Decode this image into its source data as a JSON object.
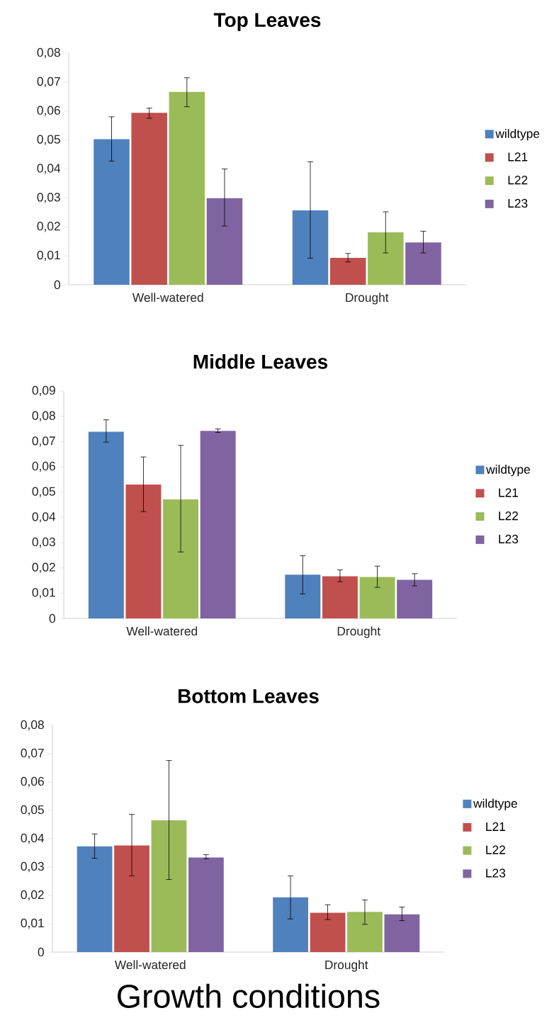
{
  "chart_data": [
    {
      "type": "bar",
      "title": "Top Leaves",
      "categories": [
        "Well-watered",
        "Drought"
      ],
      "legend": "right",
      "ylim": [
        0,
        0.08
      ],
      "yticks": [
        0,
        {
          "value": 0.01,
          "label": "0,01"
        },
        {
          "value": 0.02,
          "label": "0,02"
        },
        {
          "value": 0.03,
          "label": "0,03"
        },
        {
          "value": 0.04,
          "label": "0,04"
        },
        {
          "value": 0.05,
          "label": "0,05"
        },
        {
          "value": 0.06,
          "label": "0,06"
        },
        {
          "value": 0.07,
          "label": "0,07"
        },
        {
          "value": 0.08,
          "label": "0,08"
        }
      ],
      "series": [
        {
          "name": "wildtype",
          "color": "#4f81bd",
          "values": [
            0.0503,
            0.0257
          ],
          "errors": [
            [
              0.0427,
              0.058
            ],
            [
              0.0092,
              0.0425
            ]
          ]
        },
        {
          "name": "L21",
          "color": "#c0504d",
          "values": [
            0.0594,
            0.0093
          ],
          "errors": [
            [
              0.0575,
              0.061
            ],
            [
              0.0079,
              0.0108
            ]
          ]
        },
        {
          "name": "L22",
          "color": "#9bbb59",
          "values": [
            0.0666,
            0.0181
          ],
          "errors": [
            [
              0.0615,
              0.0715
            ],
            [
              0.011,
              0.0252
            ]
          ]
        },
        {
          "name": "L23",
          "color": "#8064a2",
          "values": [
            0.0299,
            0.0146
          ],
          "errors": [
            [
              0.0203,
              0.04
            ],
            [
              0.011,
              0.0185
            ]
          ]
        }
      ]
    },
    {
      "type": "bar",
      "title": "Middle Leaves",
      "categories": [
        "Well-watered",
        "Drought"
      ],
      "legend": "right",
      "ylim": [
        0,
        0.09
      ],
      "yticks": [
        0,
        {
          "value": 0.01,
          "label": "0,01"
        },
        {
          "value": 0.02,
          "label": "0,02"
        },
        {
          "value": 0.03,
          "label": "0,03"
        },
        {
          "value": 0.04,
          "label": "0,04"
        },
        {
          "value": 0.05,
          "label": "0,05"
        },
        {
          "value": 0.06,
          "label": "0,06"
        },
        {
          "value": 0.07,
          "label": "0,07"
        },
        {
          "value": 0.08,
          "label": "0,08"
        },
        {
          "value": 0.09,
          "label": "0,09"
        }
      ],
      "series": [
        {
          "name": "wildtype",
          "color": "#4f81bd",
          "values": [
            0.0739,
            0.0173
          ],
          "errors": [
            [
              0.0698,
              0.0786
            ],
            [
              0.0097,
              0.0248
            ]
          ]
        },
        {
          "name": "L21",
          "color": "#c0504d",
          "values": [
            0.053,
            0.0167
          ],
          "errors": [
            [
              0.0423,
              0.0639
            ],
            [
              0.0145,
              0.0192
            ]
          ]
        },
        {
          "name": "L22",
          "color": "#9bbb59",
          "values": [
            0.0471,
            0.0164
          ],
          "errors": [
            [
              0.0263,
              0.0685
            ],
            [
              0.0123,
              0.0207
            ]
          ]
        },
        {
          "name": "L23",
          "color": "#8064a2",
          "values": [
            0.0742,
            0.0153
          ],
          "errors": [
            [
              0.0736,
              0.075
            ],
            [
              0.0129,
              0.0177
            ]
          ]
        }
      ]
    },
    {
      "type": "bar",
      "title": "Bottom Leaves",
      "xlabel": "Growth conditions",
      "categories": [
        "Well-watered",
        "Drought"
      ],
      "legend": "right",
      "ylim": [
        0,
        0.08
      ],
      "yticks": [
        0,
        {
          "value": 0.01,
          "label": "0,01"
        },
        {
          "value": 0.02,
          "label": "0,02"
        },
        {
          "value": 0.03,
          "label": "0,03"
        },
        {
          "value": 0.04,
          "label": "0,04"
        },
        {
          "value": 0.05,
          "label": "0,05"
        },
        {
          "value": 0.06,
          "label": "0,06"
        },
        {
          "value": 0.07,
          "label": "0,07"
        },
        {
          "value": 0.08,
          "label": "0,08"
        }
      ],
      "series": [
        {
          "name": "wildtype",
          "color": "#4f81bd",
          "values": [
            0.0373,
            0.0193
          ],
          "errors": [
            [
              0.0331,
              0.0417
            ],
            [
              0.0117,
              0.0269
            ]
          ]
        },
        {
          "name": "L21",
          "color": "#c0504d",
          "values": [
            0.0376,
            0.0139
          ],
          "errors": [
            [
              0.0269,
              0.0486
            ],
            [
              0.0115,
              0.0167
            ]
          ]
        },
        {
          "name": "L22",
          "color": "#9bbb59",
          "values": [
            0.0465,
            0.0142
          ],
          "errors": [
            [
              0.0256,
              0.0676
            ],
            [
              0.0098,
              0.0184
            ]
          ]
        },
        {
          "name": "L23",
          "color": "#8064a2",
          "values": [
            0.0334,
            0.0133
          ],
          "errors": [
            [
              0.0329,
              0.0344
            ],
            [
              0.0111,
              0.0159
            ]
          ]
        }
      ]
    }
  ]
}
